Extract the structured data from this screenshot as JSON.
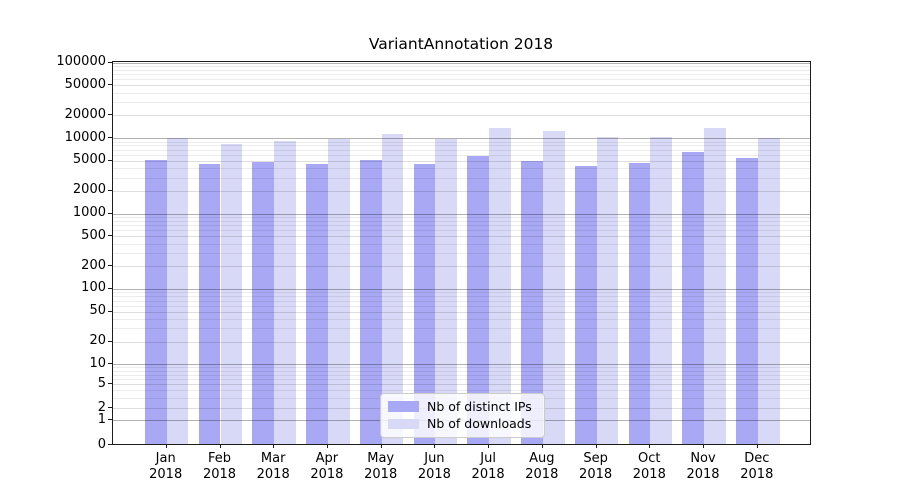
{
  "title": "VariantAnnotation 2018",
  "chart_data": {
    "type": "bar",
    "title": "VariantAnnotation 2018",
    "categories": [
      "Jan 2018",
      "Feb 2018",
      "Mar 2018",
      "Apr 2018",
      "May 2018",
      "Jun 2018",
      "Jul 2018",
      "Aug 2018",
      "Sep 2018",
      "Oct 2018",
      "Nov 2018",
      "Dec 2018"
    ],
    "series": [
      {
        "name": "Nb of distinct IPs",
        "color": "#a8a8f5",
        "values": [
          5100,
          4500,
          4800,
          4550,
          5200,
          4550,
          5800,
          4950,
          4300,
          4750,
          6600,
          5500
        ]
      },
      {
        "name": "Nb of downloads",
        "color": "#d8d8f7",
        "values": [
          10100,
          8250,
          9300,
          9850,
          11500,
          9600,
          13700,
          12400,
          10300,
          10300,
          13450,
          9900
        ]
      }
    ],
    "xlabel": "",
    "ylabel": "",
    "yscale": "symlog",
    "ylim": [
      0,
      100000
    ],
    "yticks": [
      0,
      1,
      2,
      5,
      10,
      20,
      50,
      100,
      200,
      500,
      1000,
      2000,
      5000,
      10000,
      20000,
      50000,
      100000
    ],
    "grid": "on",
    "legend_position": "lower center"
  }
}
